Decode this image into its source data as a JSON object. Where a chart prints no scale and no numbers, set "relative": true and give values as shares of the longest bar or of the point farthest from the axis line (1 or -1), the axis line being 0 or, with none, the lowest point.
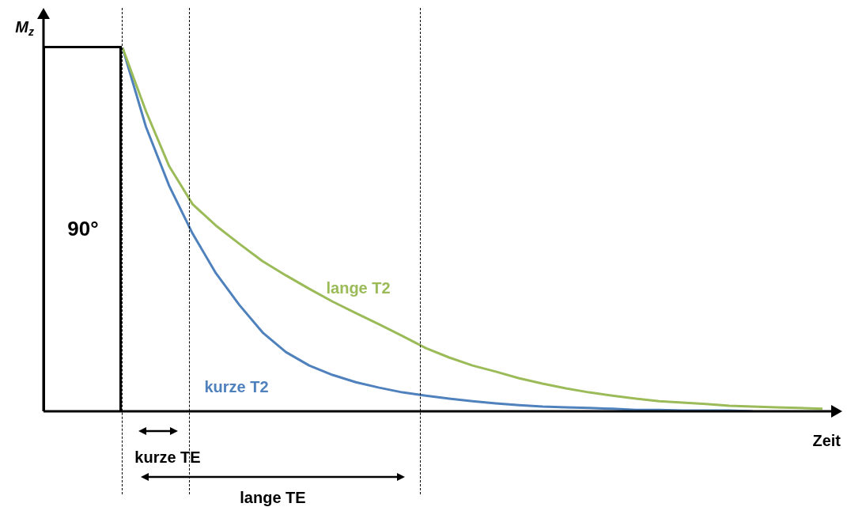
{
  "chart_data": {
    "type": "line",
    "relative": true,
    "xlabel": "Zeit",
    "ylabel": "M$_{z}$",
    "tick_labels": false,
    "marker": "none",
    "line_style": "solid",
    "categories": [
      null,
      null,
      null,
      null,
      null,
      null,
      null,
      null,
      null,
      null,
      null,
      null,
      null,
      null,
      null,
      null,
      null,
      null,
      null,
      null,
      null,
      null,
      null,
      null,
      null,
      null,
      null,
      null,
      null,
      null,
      null
    ],
    "series": [
      {
        "name": "lange T2",
        "color": "#9bbb59",
        "values": [
          1,
          0.826,
          0.674,
          0.57,
          0.511,
          0.461,
          0.413,
          0.374,
          0.337,
          0.302,
          0.27,
          0.239,
          0.207,
          0.174,
          0.148,
          0.126,
          0.109,
          0.091,
          0.076,
          0.063,
          0.052,
          0.043,
          0.035,
          0.028,
          0.024,
          0.02,
          0.015,
          0.013,
          0.011,
          0.009,
          0.007
        ]
      },
      {
        "name": "kurze T2",
        "color": "#4f81bd",
        "values": [
          1,
          0.783,
          0.62,
          0.489,
          0.38,
          0.293,
          0.217,
          0.163,
          0.126,
          0.1,
          0.08,
          0.065,
          0.052,
          0.043,
          0.035,
          0.028,
          0.022,
          0.017,
          0.013,
          0.011,
          0.009,
          0.007,
          0.004,
          0.004,
          0.002,
          0.002,
          0.002,
          0,
          null,
          null,
          null
        ]
      }
    ],
    "annotations": [
      "90°",
      "kurze TE",
      "lange TE"
    ]
  }
}
